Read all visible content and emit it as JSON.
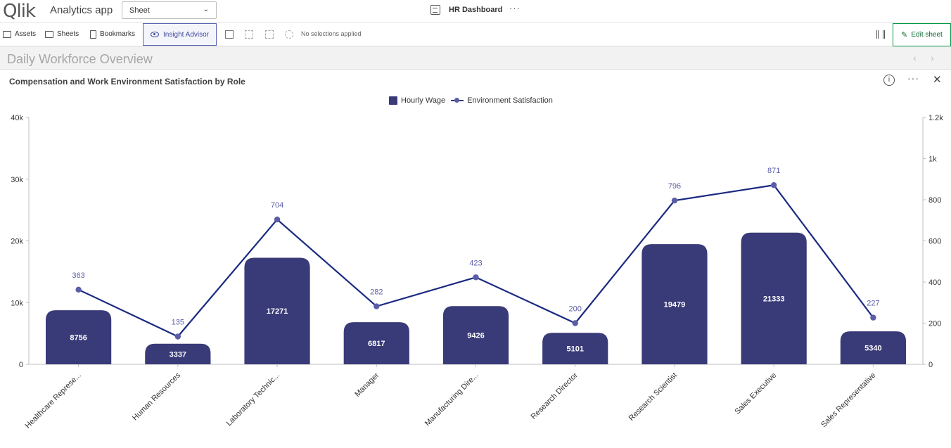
{
  "app": {
    "logo_text": "Qlik",
    "title": "Analytics app",
    "sheet_select": "Sheet",
    "dashboard": "HR Dashboard",
    "more": "···"
  },
  "toolbar": {
    "assets": "Assets",
    "sheets": "Sheets",
    "bookmarks": "Bookmarks",
    "insight": "Insight Advisor",
    "no_selections": "No selections applied",
    "edit_sheet": "Edit sheet"
  },
  "sheet": {
    "name": "Daily Workforce Overview",
    "prev": "‹",
    "next": "›"
  },
  "panel": {
    "info": "i",
    "more": "···",
    "close": "✕"
  },
  "chart_data": {
    "type": "bar",
    "title": "Compensation and Work Environment Satisfaction by Role",
    "categories": [
      "Healthcare Represe...",
      "Human Resources",
      "Laboratory Technic...",
      "Manager",
      "Manufacturing Dire...",
      "Research Director",
      "Research Scientist",
      "Sales Executive",
      "Sales Representative"
    ],
    "series": [
      {
        "name": "Hourly Wage",
        "type": "bar",
        "axis": "left",
        "color": "#393a78",
        "values": [
          8756,
          3337,
          17271,
          6817,
          9426,
          5101,
          19479,
          21333,
          5340
        ]
      },
      {
        "name": "Environment Satisfaction",
        "type": "line",
        "axis": "right",
        "color": "#1a2a80",
        "values": [
          363,
          135,
          704,
          282,
          423,
          200,
          796,
          871,
          227
        ]
      }
    ],
    "left_axis": {
      "ticks": [
        "0",
        "10k",
        "20k",
        "30k",
        "40k"
      ],
      "ylim": [
        0,
        40000
      ]
    },
    "right_axis": {
      "ticks": [
        "0",
        "200",
        "400",
        "600",
        "800",
        "1k",
        "1.2k"
      ],
      "ylim": [
        0,
        1200
      ]
    },
    "legend_position": "top-center",
    "grid": false
  }
}
